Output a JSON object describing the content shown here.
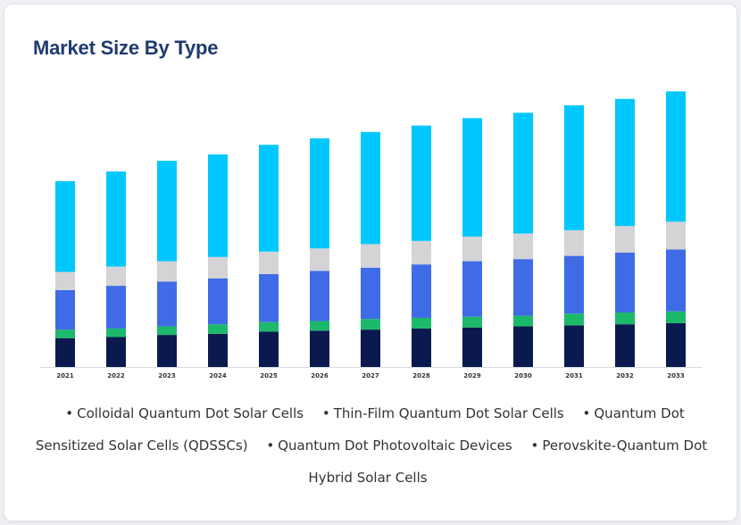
{
  "title": "Market Size By Type",
  "chart_data": {
    "type": "bar",
    "stacked": true,
    "title": "Market Size By Type",
    "categories": [
      "2021",
      "2022",
      "2023",
      "2024",
      "2025",
      "2026",
      "2027",
      "2028",
      "2029",
      "2030",
      "2031",
      "2032",
      "2033"
    ],
    "ylim": [
      0,
      270
    ],
    "series": [
      {
        "name": "Colloidal Quantum Dot Solar Cells",
        "color": "#0a1a4f",
        "values": [
          27,
          28,
          30,
          31,
          33,
          34,
          35,
          36,
          37,
          38,
          39,
          40,
          41
        ]
      },
      {
        "name": "Thin-Film Quantum Dot Solar Cells",
        "color": "#1db96a",
        "values": [
          8,
          8,
          8,
          9,
          9,
          9,
          10,
          10,
          10,
          10,
          11,
          11,
          11
        ]
      },
      {
        "name": "Quantum Dot Sensitized Solar Cells (QDSSCs)",
        "color": "#3f6be6",
        "values": [
          37,
          40,
          42,
          43,
          45,
          47,
          48,
          50,
          52,
          53,
          54,
          56,
          58
        ]
      },
      {
        "name": "Quantum Dot Photovoltaic Devices",
        "color": "#d4d4d6",
        "values": [
          17,
          18,
          19,
          20,
          21,
          21,
          22,
          22,
          23,
          24,
          24,
          25,
          26
        ]
      },
      {
        "name": "Perovskite-Quantum Dot Hybrid Solar Cells",
        "color": "#00c8ff",
        "values": [
          85,
          89,
          94,
          96,
          100,
          103,
          105,
          108,
          111,
          113,
          117,
          119,
          122
        ]
      }
    ],
    "legend_position": "bottom",
    "grid": false
  },
  "legend": [
    {
      "label": "Colloidal Quantum Dot Solar Cells"
    },
    {
      "label": "Thin-Film Quantum Dot Solar Cells"
    },
    {
      "label": "Quantum Dot Sensitized Solar Cells (QDSSCs)"
    },
    {
      "label": "Quantum Dot Photovoltaic Devices"
    },
    {
      "label": "Perovskite-Quantum Dot Hybrid Solar Cells"
    }
  ]
}
